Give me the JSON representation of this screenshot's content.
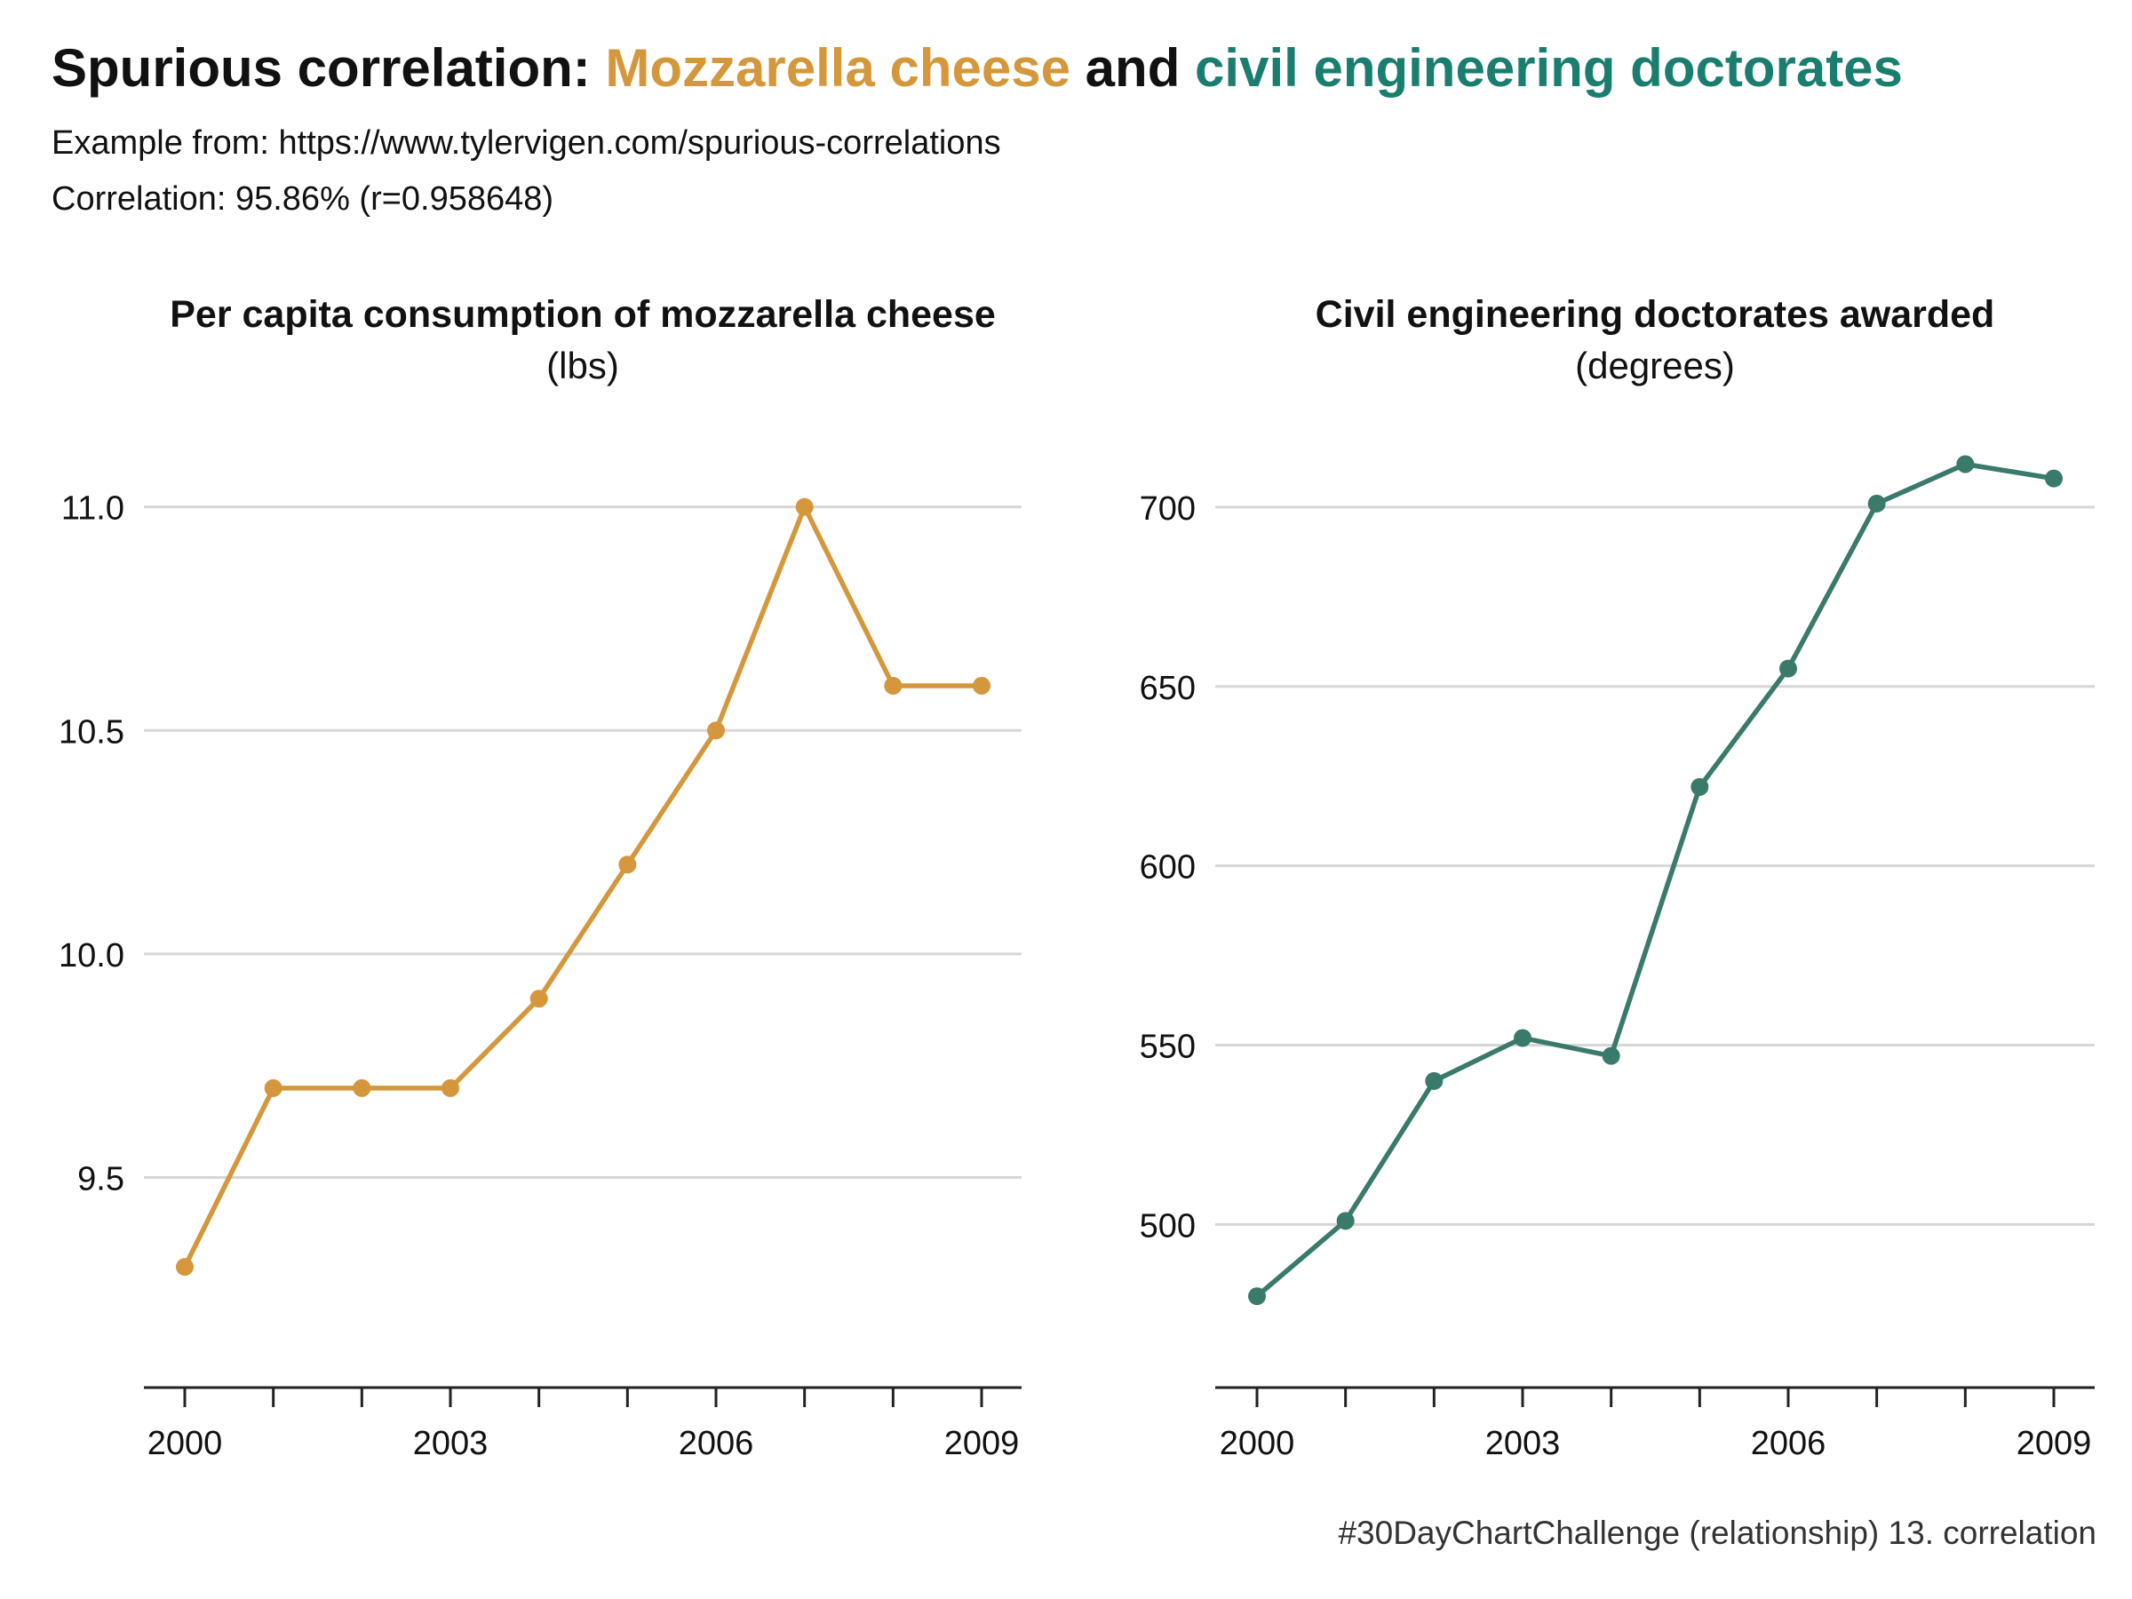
{
  "header": {
    "title_prefix": "Spurious correlation: ",
    "title_var1": "Mozzarella cheese",
    "title_join": " and ",
    "title_var2": "civil engineering doctorates",
    "subtitle_source": "Example from: https://www.tylervigen.com/spurious-correlations",
    "subtitle_correlation": "Correlation: 95.86% (r=0.958648)"
  },
  "caption": "#30DayChartChallenge (relationship) 13. correlation",
  "colors": {
    "cheese": "#D4973B",
    "engineering": "#3A7A6B",
    "var1_title": "#D4973B",
    "var2_title": "#1A7E6E",
    "grid": "#d6d6d6",
    "axis": "#222222"
  },
  "chart_data": [
    {
      "type": "line",
      "title": "Per capita consumption of mozzarella cheese",
      "unit": "(lbs)",
      "x": [
        2000,
        2001,
        2002,
        2003,
        2004,
        2005,
        2006,
        2007,
        2008,
        2009
      ],
      "values": [
        9.3,
        9.7,
        9.7,
        9.7,
        9.9,
        10.2,
        10.5,
        11.0,
        10.6,
        10.6
      ],
      "y_ticks": [
        "9.5",
        "10.0",
        "10.5",
        "11.0"
      ],
      "x_ticks": [
        "2000",
        "2003",
        "2006",
        "2009"
      ],
      "ylim": [
        9.05,
        11.2
      ],
      "grid": true
    },
    {
      "type": "line",
      "title": "Civil engineering doctorates awarded",
      "unit": "(degrees)",
      "x": [
        2000,
        2001,
        2002,
        2003,
        2004,
        2005,
        2006,
        2007,
        2008,
        2009
      ],
      "values": [
        480,
        501,
        540,
        552,
        547,
        622,
        655,
        701,
        712,
        708
      ],
      "y_ticks": [
        "500",
        "550",
        "600",
        "650",
        "700"
      ],
      "x_ticks": [
        "2000",
        "2003",
        "2006",
        "2009"
      ],
      "ylim": [
        457,
        725
      ],
      "grid": true
    }
  ]
}
